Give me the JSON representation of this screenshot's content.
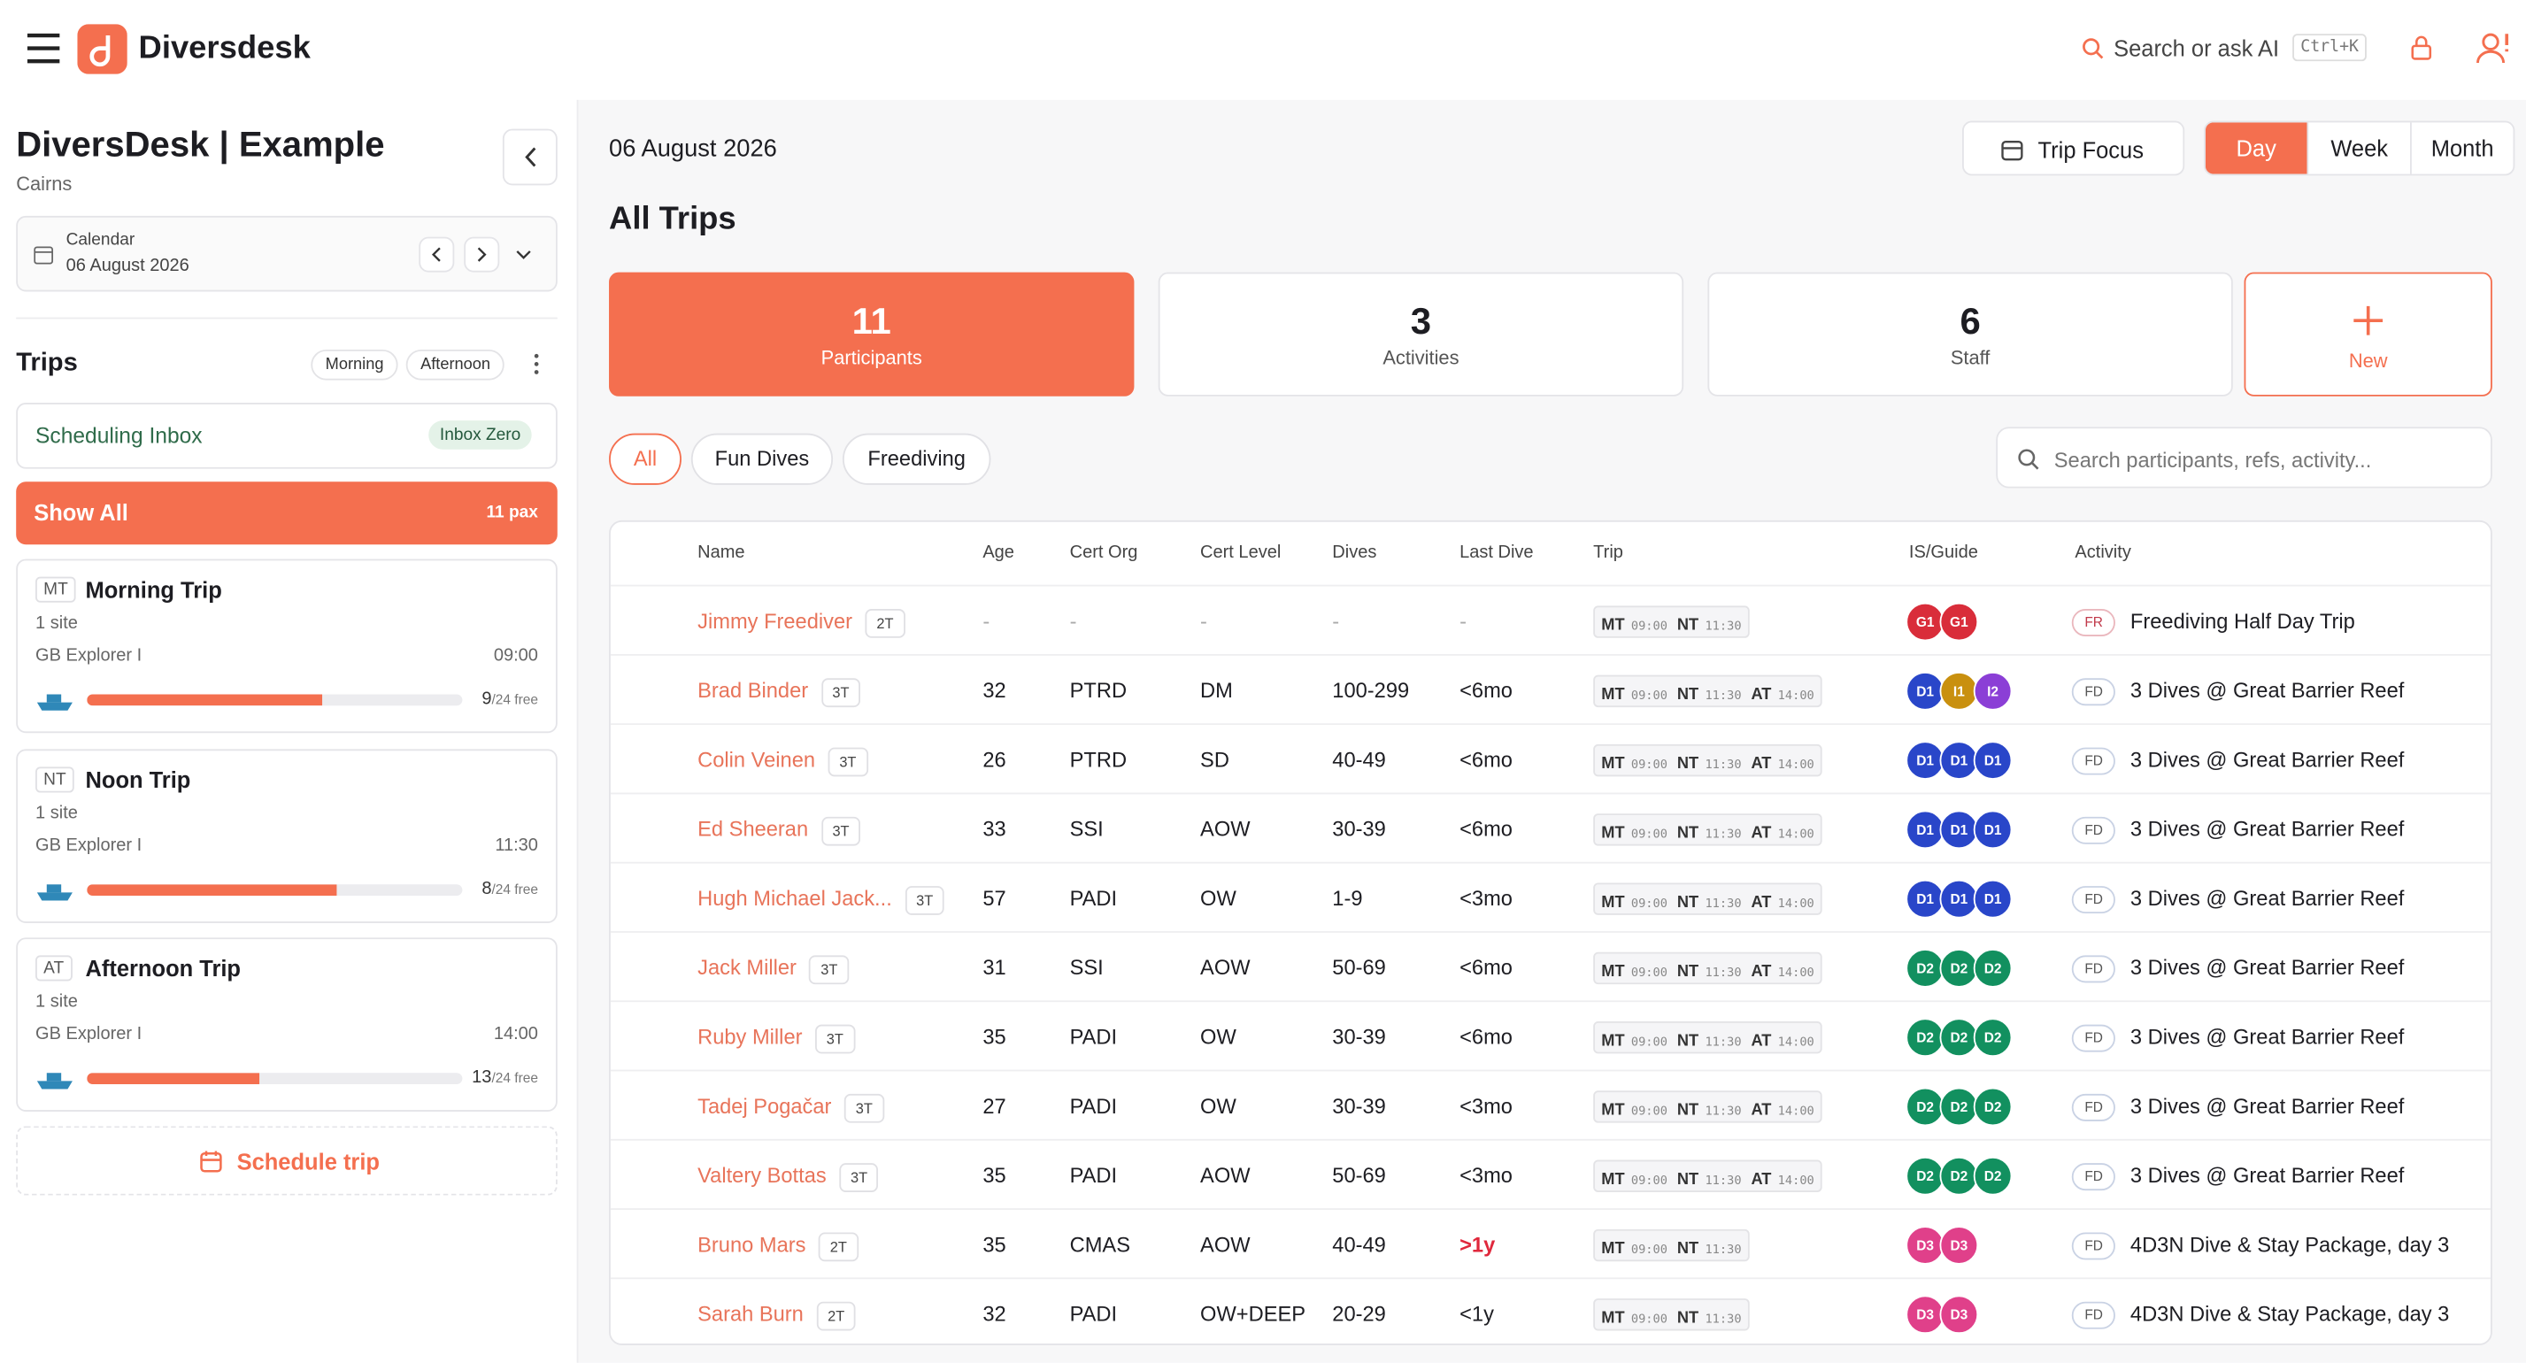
{
  "header": {
    "brand": "Diversdesk",
    "search": "Search or ask AI",
    "shortcut": "Ctrl+K"
  },
  "sidebar": {
    "title": "DiversDesk | Example",
    "location": "Cairns",
    "calendar": {
      "label": "Calendar",
      "date": "06 August 2026"
    },
    "trips_heading": "Trips",
    "filters": [
      "Morning",
      "Afternoon"
    ],
    "inbox": {
      "label": "Scheduling Inbox",
      "badge": "Inbox Zero"
    },
    "show_all": {
      "label": "Show All",
      "pax": "11 pax"
    },
    "trips": [
      {
        "code": "MT",
        "name": "Morning Trip",
        "sites": "1 site",
        "vessel": "GB Explorer I",
        "time": "09:00",
        "free": 9,
        "capacity": 24,
        "capacity_label": "/24 free"
      },
      {
        "code": "NT",
        "name": "Noon Trip",
        "sites": "1 site",
        "vessel": "GB Explorer I",
        "time": "11:30",
        "free": 8,
        "capacity": 24,
        "capacity_label": "/24 free"
      },
      {
        "code": "AT",
        "name": "Afternoon Trip",
        "sites": "1 site",
        "vessel": "GB Explorer I",
        "time": "14:00",
        "free": 13,
        "capacity": 24,
        "capacity_label": "/24 free"
      }
    ],
    "schedule_button": "Schedule trip"
  },
  "main": {
    "date": "06 August 2026",
    "trip_focus": "Trip Focus",
    "views": [
      "Day",
      "Week",
      "Month"
    ],
    "active_view_index": 0,
    "heading": "All Trips",
    "stats": [
      {
        "value": 11,
        "label": "Participants"
      },
      {
        "value": 3,
        "label": "Activities"
      },
      {
        "value": 6,
        "label": "Staff"
      }
    ],
    "new": "New",
    "tabs": [
      "All",
      "Fun Dives",
      "Freediving"
    ],
    "active_tab_index": 0,
    "search_placeholder": "Search participants, refs, activity...",
    "guide_colors": {
      "G1": "#d92d3a",
      "D1": "#2946c9",
      "I1": "#c9900f",
      "I2": "#8b3fd6",
      "D2": "#12905f",
      "D3": "#e0408a"
    },
    "table": {
      "columns": [
        "Name",
        "Age",
        "Cert Org",
        "Cert Level",
        "Dives",
        "Last Dive",
        "Trip",
        "IS/Guide",
        "Activity"
      ],
      "rows": [
        {
          "name": "Jimmy Freediver",
          "tag": "2T",
          "age": "-",
          "org": "-",
          "level": "-",
          "dives": "-",
          "last": "-",
          "trips": [
            {
              "code": "MT",
              "time": "09:00"
            },
            {
              "code": "NT",
              "time": "11:30"
            }
          ],
          "guides": [
            "G1",
            "G1"
          ],
          "activity_code": "FR",
          "activity": "Freediving Half Day Trip"
        },
        {
          "name": "Brad Binder",
          "tag": "3T",
          "age": 32,
          "org": "PTRD",
          "level": "DM",
          "dives": "100-299",
          "last": "<6mo",
          "trips": [
            {
              "code": "MT",
              "time": "09:00"
            },
            {
              "code": "NT",
              "time": "11:30"
            },
            {
              "code": "AT",
              "time": "14:00"
            }
          ],
          "guides": [
            "D1",
            "I1",
            "I2"
          ],
          "activity_code": "FD",
          "activity": "3 Dives @ Great Barrier Reef"
        },
        {
          "name": "Colin Veinen",
          "tag": "3T",
          "age": 26,
          "org": "PTRD",
          "level": "SD",
          "dives": "40-49",
          "last": "<6mo",
          "trips": [
            {
              "code": "MT",
              "time": "09:00"
            },
            {
              "code": "NT",
              "time": "11:30"
            },
            {
              "code": "AT",
              "time": "14:00"
            }
          ],
          "guides": [
            "D1",
            "D1",
            "D1"
          ],
          "activity_code": "FD",
          "activity": "3 Dives @ Great Barrier Reef"
        },
        {
          "name": "Ed Sheeran",
          "tag": "3T",
          "age": 33,
          "org": "SSI",
          "level": "AOW",
          "dives": "30-39",
          "last": "<6mo",
          "trips": [
            {
              "code": "MT",
              "time": "09:00"
            },
            {
              "code": "NT",
              "time": "11:30"
            },
            {
              "code": "AT",
              "time": "14:00"
            }
          ],
          "guides": [
            "D1",
            "D1",
            "D1"
          ],
          "activity_code": "FD",
          "activity": "3 Dives @ Great Barrier Reef"
        },
        {
          "name": "Hugh Michael Jack...",
          "tag": "3T",
          "age": 57,
          "org": "PADI",
          "level": "OW",
          "dives": "1-9",
          "last": "<3mo",
          "trips": [
            {
              "code": "MT",
              "time": "09:00"
            },
            {
              "code": "NT",
              "time": "11:30"
            },
            {
              "code": "AT",
              "time": "14:00"
            }
          ],
          "guides": [
            "D1",
            "D1",
            "D1"
          ],
          "activity_code": "FD",
          "activity": "3 Dives @ Great Barrier Reef"
        },
        {
          "name": "Jack Miller",
          "tag": "3T",
          "age": 31,
          "org": "SSI",
          "level": "AOW",
          "dives": "50-69",
          "last": "<6mo",
          "trips": [
            {
              "code": "MT",
              "time": "09:00"
            },
            {
              "code": "NT",
              "time": "11:30"
            },
            {
              "code": "AT",
              "time": "14:00"
            }
          ],
          "guides": [
            "D2",
            "D2",
            "D2"
          ],
          "activity_code": "FD",
          "activity": "3 Dives @ Great Barrier Reef"
        },
        {
          "name": "Ruby Miller",
          "tag": "3T",
          "age": 35,
          "org": "PADI",
          "level": "OW",
          "dives": "30-39",
          "last": "<6mo",
          "trips": [
            {
              "code": "MT",
              "time": "09:00"
            },
            {
              "code": "NT",
              "time": "11:30"
            },
            {
              "code": "AT",
              "time": "14:00"
            }
          ],
          "guides": [
            "D2",
            "D2",
            "D2"
          ],
          "activity_code": "FD",
          "activity": "3 Dives @ Great Barrier Reef"
        },
        {
          "name": "Tadej Pogačar",
          "tag": "3T",
          "age": 27,
          "org": "PADI",
          "level": "OW",
          "dives": "30-39",
          "last": "<3mo",
          "trips": [
            {
              "code": "MT",
              "time": "09:00"
            },
            {
              "code": "NT",
              "time": "11:30"
            },
            {
              "code": "AT",
              "time": "14:00"
            }
          ],
          "guides": [
            "D2",
            "D2",
            "D2"
          ],
          "activity_code": "FD",
          "activity": "3 Dives @ Great Barrier Reef"
        },
        {
          "name": "Valtery Bottas",
          "tag": "3T",
          "age": 35,
          "org": "PADI",
          "level": "AOW",
          "dives": "50-69",
          "last": "<3mo",
          "trips": [
            {
              "code": "MT",
              "time": "09:00"
            },
            {
              "code": "NT",
              "time": "11:30"
            },
            {
              "code": "AT",
              "time": "14:00"
            }
          ],
          "guides": [
            "D2",
            "D2",
            "D2"
          ],
          "activity_code": "FD",
          "activity": "3 Dives @ Great Barrier Reef"
        },
        {
          "name": "Bruno Mars",
          "tag": "2T",
          "age": 35,
          "org": "CMAS",
          "level": "AOW",
          "dives": "40-49",
          "last": ">1y",
          "last_alert": true,
          "trips": [
            {
              "code": "MT",
              "time": "09:00"
            },
            {
              "code": "NT",
              "time": "11:30"
            }
          ],
          "guides": [
            "D3",
            "D3"
          ],
          "activity_code": "FD",
          "activity": "4D3N Dive & Stay Package, day 3"
        },
        {
          "name": "Sarah Burn",
          "tag": "2T",
          "age": 32,
          "org": "PADI",
          "level": "OW+DEEP",
          "dives": "20-29",
          "last": "<1y",
          "trips": [
            {
              "code": "MT",
              "time": "09:00"
            },
            {
              "code": "NT",
              "time": "11:30"
            }
          ],
          "guides": [
            "D3",
            "D3"
          ],
          "activity_code": "FD",
          "activity": "4D3N Dive & Stay Package, day 3"
        }
      ]
    }
  }
}
